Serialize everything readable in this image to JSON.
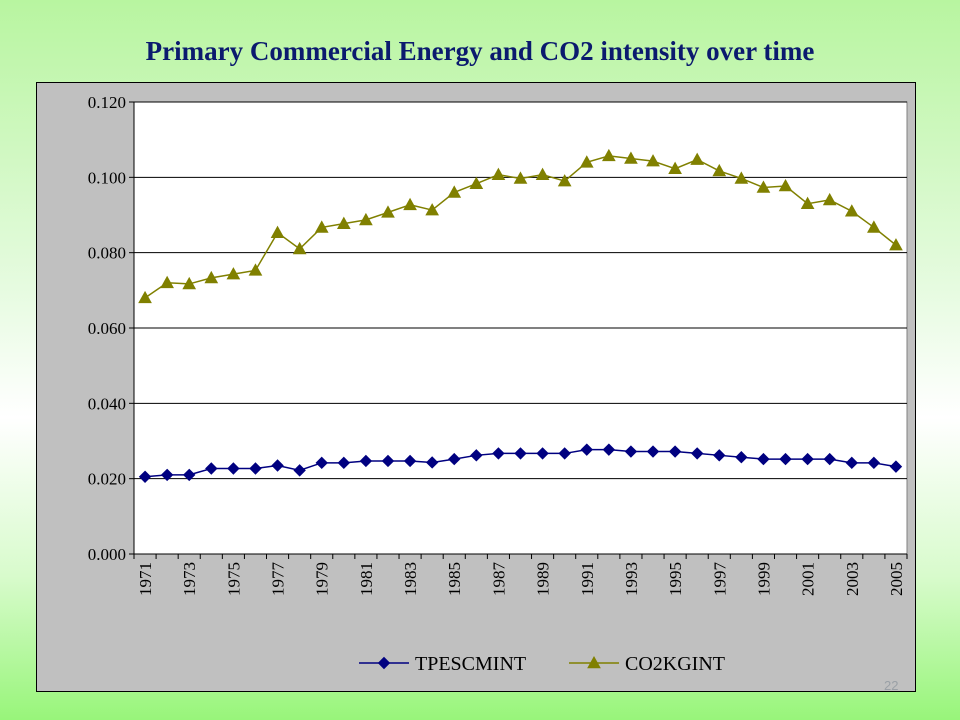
{
  "slide": {
    "title": "Primary Commercial Energy and CO2 intensity over time",
    "page_number": "22"
  },
  "colors": {
    "tpescmint": "#000080",
    "co2kgint": "#808000",
    "plot_bg": "#ffffff",
    "frame_bg": "#c0c0c0"
  },
  "chart_data": {
    "type": "line",
    "title": "",
    "xlabel": "",
    "ylabel": "",
    "x": [
      1971,
      1972,
      1973,
      1974,
      1975,
      1976,
      1977,
      1978,
      1979,
      1980,
      1981,
      1982,
      1983,
      1984,
      1985,
      1986,
      1987,
      1988,
      1989,
      1990,
      1991,
      1992,
      1993,
      1994,
      1995,
      1996,
      1997,
      1998,
      1999,
      2000,
      2001,
      2002,
      2003,
      2004,
      2005
    ],
    "x_tick_labels": [
      "1971",
      "1973",
      "1975",
      "1977",
      "1979",
      "1981",
      "1983",
      "1985",
      "1987",
      "1989",
      "1991",
      "1993",
      "1995",
      "1997",
      "1999",
      "2001",
      "2003",
      "2005"
    ],
    "ylim": [
      0,
      0.12
    ],
    "y_tick_labels": [
      "0.000",
      "0.020",
      "0.040",
      "0.060",
      "0.080",
      "0.100",
      "0.120"
    ],
    "grid": "horizontal",
    "legend_position": "bottom",
    "series": [
      {
        "name": "TPESCMINT",
        "marker": "diamond",
        "values": [
          0.0205,
          0.021,
          0.021,
          0.0227,
          0.0227,
          0.0227,
          0.0235,
          0.0222,
          0.0242,
          0.0242,
          0.0247,
          0.0247,
          0.0247,
          0.0243,
          0.0252,
          0.0262,
          0.0267,
          0.0267,
          0.0267,
          0.0267,
          0.0277,
          0.0277,
          0.0272,
          0.0272,
          0.0272,
          0.0267,
          0.0262,
          0.0257,
          0.0252,
          0.0252,
          0.0252,
          0.0252,
          0.0242,
          0.0242,
          0.0232
        ]
      },
      {
        "name": "CO2KGINT",
        "marker": "triangle",
        "values": [
          0.068,
          0.072,
          0.0717,
          0.0733,
          0.0743,
          0.0753,
          0.0853,
          0.081,
          0.0867,
          0.0877,
          0.0887,
          0.0907,
          0.0927,
          0.0913,
          0.096,
          0.0983,
          0.1007,
          0.0997,
          0.1007,
          0.099,
          0.104,
          0.1057,
          0.105,
          0.1043,
          0.1023,
          0.1047,
          0.1017,
          0.0997,
          0.0973,
          0.0977,
          0.093,
          0.094,
          0.091,
          0.0867,
          0.082
        ]
      }
    ]
  }
}
